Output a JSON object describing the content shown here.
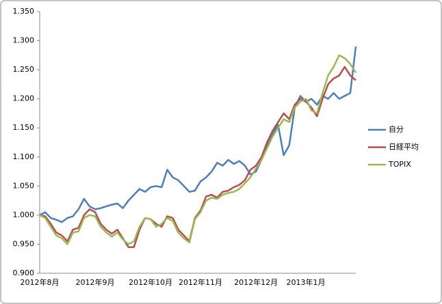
{
  "chart_data": {
    "type": "line",
    "categories": [
      "2012年8月",
      null,
      null,
      null,
      null,
      null,
      null,
      null,
      null,
      null,
      "2012年9月",
      null,
      null,
      null,
      null,
      null,
      null,
      null,
      null,
      null,
      "2012年10月",
      null,
      null,
      null,
      null,
      null,
      null,
      null,
      null,
      "2012年11月",
      null,
      null,
      null,
      null,
      null,
      null,
      null,
      null,
      null,
      "2012年12月",
      null,
      null,
      null,
      null,
      null,
      null,
      null,
      null,
      "2013年1月",
      null,
      null,
      null,
      null,
      null,
      null,
      null,
      null,
      null
    ],
    "series": [
      {
        "name": "自分",
        "color": "#4a7ebb",
        "values": [
          1.0,
          1.005,
          0.995,
          0.992,
          0.988,
          0.995,
          0.998,
          1.01,
          1.028,
          1.015,
          1.01,
          1.012,
          1.015,
          1.018,
          1.02,
          1.012,
          1.025,
          1.035,
          1.045,
          1.04,
          1.048,
          1.05,
          1.048,
          1.078,
          1.065,
          1.06,
          1.05,
          1.04,
          1.042,
          1.058,
          1.065,
          1.075,
          1.09,
          1.085,
          1.095,
          1.088,
          1.093,
          1.085,
          1.07,
          1.075,
          1.095,
          1.12,
          1.14,
          1.155,
          1.103,
          1.12,
          1.185,
          1.205,
          1.195,
          1.2,
          1.19,
          1.205,
          1.2,
          1.21,
          1.2,
          1.205,
          1.21,
          1.29
        ]
      },
      {
        "name": "日経平均",
        "color": "#be4b48",
        "values": [
          1.0,
          0.998,
          0.985,
          0.97,
          0.965,
          0.955,
          0.975,
          0.978,
          1.0,
          1.01,
          1.005,
          0.985,
          0.975,
          0.968,
          0.975,
          0.96,
          0.945,
          0.945,
          0.975,
          0.995,
          0.993,
          0.985,
          0.98,
          0.998,
          0.995,
          0.975,
          0.965,
          0.955,
          0.995,
          1.008,
          1.032,
          1.035,
          1.03,
          1.04,
          1.042,
          1.048,
          1.052,
          1.06,
          1.078,
          1.085,
          1.1,
          1.125,
          1.145,
          1.16,
          1.175,
          1.165,
          1.19,
          1.2,
          1.195,
          1.185,
          1.17,
          1.2,
          1.225,
          1.235,
          1.24,
          1.255,
          1.24,
          1.232
        ]
      },
      {
        "name": "TOPIX",
        "color": "#98b954",
        "values": [
          1.0,
          0.995,
          0.98,
          0.965,
          0.96,
          0.95,
          0.97,
          0.972,
          0.995,
          1.0,
          0.998,
          0.98,
          0.97,
          0.963,
          0.97,
          0.958,
          0.95,
          0.955,
          0.98,
          0.995,
          0.993,
          0.98,
          0.985,
          0.995,
          0.99,
          0.97,
          0.96,
          0.953,
          0.993,
          1.005,
          1.025,
          1.03,
          1.028,
          1.035,
          1.038,
          1.04,
          1.045,
          1.055,
          1.065,
          1.08,
          1.095,
          1.115,
          1.135,
          1.15,
          1.165,
          1.16,
          1.185,
          1.195,
          1.2,
          1.18,
          1.175,
          1.21,
          1.24,
          1.255,
          1.275,
          1.27,
          1.26,
          1.245
        ]
      }
    ],
    "ylim": [
      0.9,
      1.35
    ],
    "yticks": [
      {
        "value": 0.9,
        "label": "0.900"
      },
      {
        "value": 0.95,
        "label": "0.950"
      },
      {
        "value": 1.0,
        "label": "1.000"
      },
      {
        "value": 1.05,
        "label": "1.050"
      },
      {
        "value": 1.1,
        "label": "1.100"
      },
      {
        "value": 1.15,
        "label": "1.150"
      },
      {
        "value": 1.2,
        "label": "1.200"
      },
      {
        "value": 1.25,
        "label": "1.250"
      },
      {
        "value": 1.3,
        "label": "1.300"
      },
      {
        "value": 1.35,
        "label": "1.350"
      }
    ],
    "grid": false,
    "legend": "right"
  }
}
